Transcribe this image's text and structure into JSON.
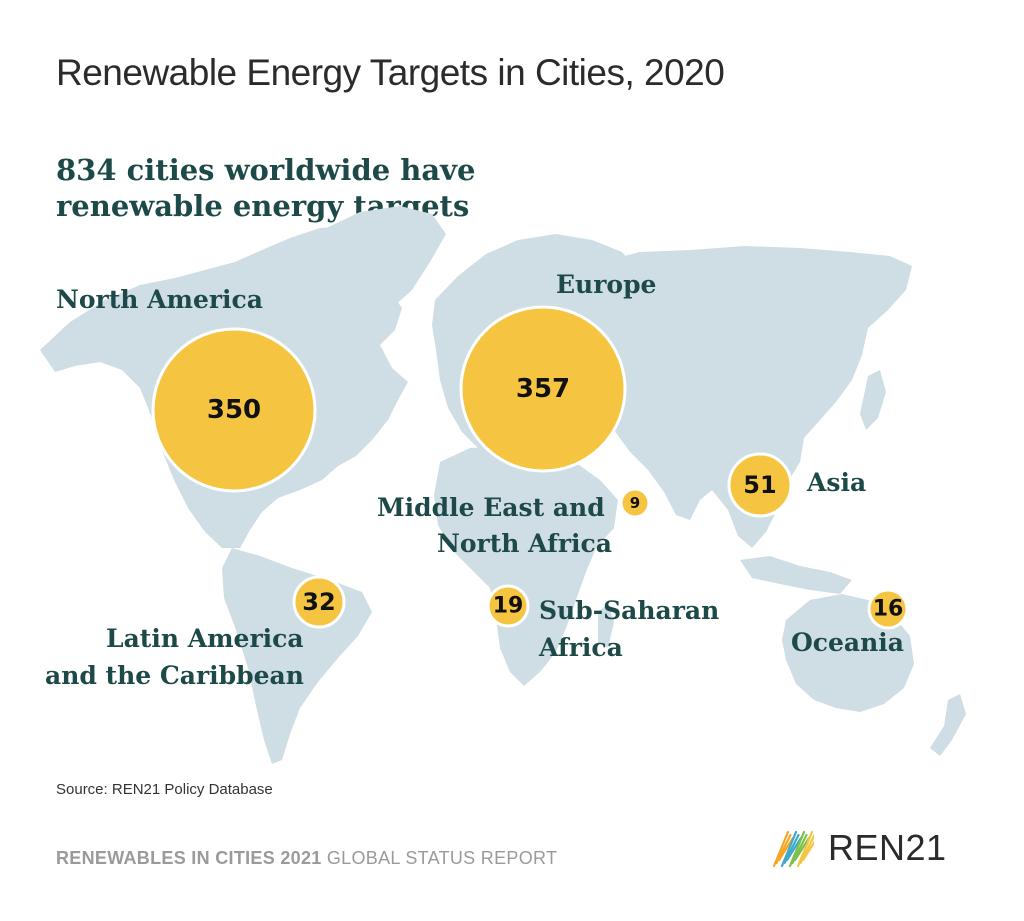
{
  "title": "Renewable Energy Targets in Cities, 2020",
  "headline": {
    "line1": "834 cities worldwide have",
    "line2": "renewable energy targets"
  },
  "colors": {
    "land": "#cfdde5",
    "bubble": "#f5c542",
    "text_dark": "#1d4a48"
  },
  "regions": [
    {
      "key": "north-america",
      "label_lines": [
        "North America"
      ],
      "value": 350
    },
    {
      "key": "europe",
      "label_lines": [
        "Europe"
      ],
      "value": 357
    },
    {
      "key": "middle-east-north-africa",
      "label_lines": [
        "Middle East and",
        "North Africa"
      ],
      "value": 9
    },
    {
      "key": "asia",
      "label_lines": [
        "Asia"
      ],
      "value": 51
    },
    {
      "key": "latin-america-caribbean",
      "label_lines": [
        "Latin America",
        "and the Caribbean"
      ],
      "value": 32
    },
    {
      "key": "sub-saharan-africa",
      "label_lines": [
        "Sub-Saharan",
        "Africa"
      ],
      "value": 19
    },
    {
      "key": "oceania",
      "label_lines": [
        "Oceania"
      ],
      "value": 16
    }
  ],
  "source": "Source: REN21 Policy Database",
  "footer": {
    "bold": "RENEWABLES IN CITIES 2021",
    "normal": " GLOBAL STATUS REPORT"
  },
  "logo": {
    "text": "REN21",
    "stripe_colors": [
      "#f5a623",
      "#3fa9c8",
      "#7cc04b",
      "#f5c542"
    ]
  }
}
